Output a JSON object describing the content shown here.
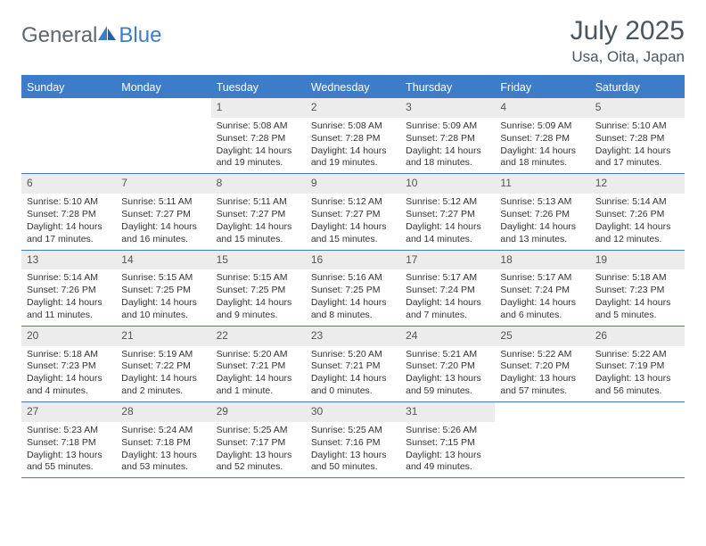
{
  "logo": {
    "part1": "General",
    "part2": "Blue"
  },
  "title": "July 2025",
  "location": "Usa, Oita, Japan",
  "colors": {
    "accent": "#3d7cc9",
    "header_text": "#ffffff",
    "daynum_bg": "#ececec",
    "text": "#333333",
    "title_text": "#4a5560"
  },
  "weekdays": [
    "Sunday",
    "Monday",
    "Tuesday",
    "Wednesday",
    "Thursday",
    "Friday",
    "Saturday"
  ],
  "first_weekday_index": 2,
  "days": [
    {
      "n": 1,
      "sunrise": "5:08 AM",
      "sunset": "7:28 PM",
      "daylight": "14 hours and 19 minutes."
    },
    {
      "n": 2,
      "sunrise": "5:08 AM",
      "sunset": "7:28 PM",
      "daylight": "14 hours and 19 minutes."
    },
    {
      "n": 3,
      "sunrise": "5:09 AM",
      "sunset": "7:28 PM",
      "daylight": "14 hours and 18 minutes."
    },
    {
      "n": 4,
      "sunrise": "5:09 AM",
      "sunset": "7:28 PM",
      "daylight": "14 hours and 18 minutes."
    },
    {
      "n": 5,
      "sunrise": "5:10 AM",
      "sunset": "7:28 PM",
      "daylight": "14 hours and 17 minutes."
    },
    {
      "n": 6,
      "sunrise": "5:10 AM",
      "sunset": "7:28 PM",
      "daylight": "14 hours and 17 minutes."
    },
    {
      "n": 7,
      "sunrise": "5:11 AM",
      "sunset": "7:27 PM",
      "daylight": "14 hours and 16 minutes."
    },
    {
      "n": 8,
      "sunrise": "5:11 AM",
      "sunset": "7:27 PM",
      "daylight": "14 hours and 15 minutes."
    },
    {
      "n": 9,
      "sunrise": "5:12 AM",
      "sunset": "7:27 PM",
      "daylight": "14 hours and 15 minutes."
    },
    {
      "n": 10,
      "sunrise": "5:12 AM",
      "sunset": "7:27 PM",
      "daylight": "14 hours and 14 minutes."
    },
    {
      "n": 11,
      "sunrise": "5:13 AM",
      "sunset": "7:26 PM",
      "daylight": "14 hours and 13 minutes."
    },
    {
      "n": 12,
      "sunrise": "5:14 AM",
      "sunset": "7:26 PM",
      "daylight": "14 hours and 12 minutes."
    },
    {
      "n": 13,
      "sunrise": "5:14 AM",
      "sunset": "7:26 PM",
      "daylight": "14 hours and 11 minutes."
    },
    {
      "n": 14,
      "sunrise": "5:15 AM",
      "sunset": "7:25 PM",
      "daylight": "14 hours and 10 minutes."
    },
    {
      "n": 15,
      "sunrise": "5:15 AM",
      "sunset": "7:25 PM",
      "daylight": "14 hours and 9 minutes."
    },
    {
      "n": 16,
      "sunrise": "5:16 AM",
      "sunset": "7:25 PM",
      "daylight": "14 hours and 8 minutes."
    },
    {
      "n": 17,
      "sunrise": "5:17 AM",
      "sunset": "7:24 PM",
      "daylight": "14 hours and 7 minutes."
    },
    {
      "n": 18,
      "sunrise": "5:17 AM",
      "sunset": "7:24 PM",
      "daylight": "14 hours and 6 minutes."
    },
    {
      "n": 19,
      "sunrise": "5:18 AM",
      "sunset": "7:23 PM",
      "daylight": "14 hours and 5 minutes."
    },
    {
      "n": 20,
      "sunrise": "5:18 AM",
      "sunset": "7:23 PM",
      "daylight": "14 hours and 4 minutes."
    },
    {
      "n": 21,
      "sunrise": "5:19 AM",
      "sunset": "7:22 PM",
      "daylight": "14 hours and 2 minutes."
    },
    {
      "n": 22,
      "sunrise": "5:20 AM",
      "sunset": "7:21 PM",
      "daylight": "14 hours and 1 minute."
    },
    {
      "n": 23,
      "sunrise": "5:20 AM",
      "sunset": "7:21 PM",
      "daylight": "14 hours and 0 minutes."
    },
    {
      "n": 24,
      "sunrise": "5:21 AM",
      "sunset": "7:20 PM",
      "daylight": "13 hours and 59 minutes."
    },
    {
      "n": 25,
      "sunrise": "5:22 AM",
      "sunset": "7:20 PM",
      "daylight": "13 hours and 57 minutes."
    },
    {
      "n": 26,
      "sunrise": "5:22 AM",
      "sunset": "7:19 PM",
      "daylight": "13 hours and 56 minutes."
    },
    {
      "n": 27,
      "sunrise": "5:23 AM",
      "sunset": "7:18 PM",
      "daylight": "13 hours and 55 minutes."
    },
    {
      "n": 28,
      "sunrise": "5:24 AM",
      "sunset": "7:18 PM",
      "daylight": "13 hours and 53 minutes."
    },
    {
      "n": 29,
      "sunrise": "5:25 AM",
      "sunset": "7:17 PM",
      "daylight": "13 hours and 52 minutes."
    },
    {
      "n": 30,
      "sunrise": "5:25 AM",
      "sunset": "7:16 PM",
      "daylight": "13 hours and 50 minutes."
    },
    {
      "n": 31,
      "sunrise": "5:26 AM",
      "sunset": "7:15 PM",
      "daylight": "13 hours and 49 minutes."
    }
  ],
  "labels": {
    "sunrise_prefix": "Sunrise: ",
    "sunset_prefix": "Sunset: ",
    "daylight_prefix": "Daylight: "
  }
}
